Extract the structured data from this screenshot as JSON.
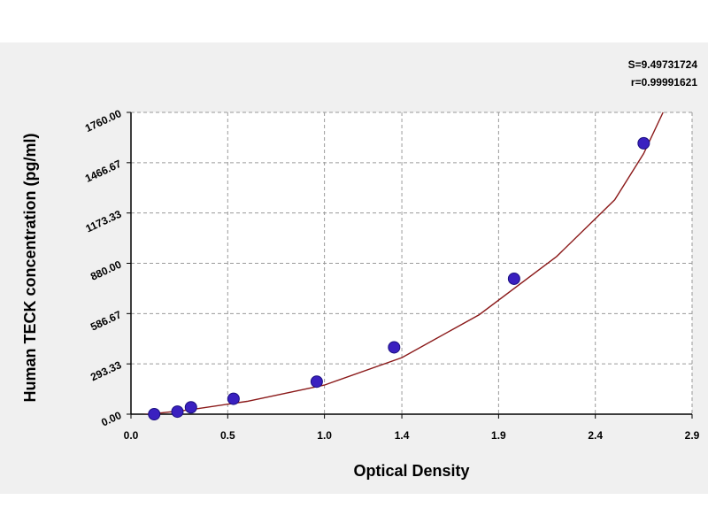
{
  "chart_data": {
    "type": "scatter",
    "title": "",
    "xlabel": "Optical Density",
    "ylabel": "Human TECK concentration (pg/ml)",
    "xlim": [
      0.0,
      2.9
    ],
    "ylim": [
      0.0,
      1760.0
    ],
    "xticks": [
      0.0,
      0.5,
      1.0,
      1.4,
      1.9,
      2.4,
      2.9
    ],
    "xtick_labels": [
      "0.0",
      "0.5",
      "1.0",
      "1.4",
      "1.9",
      "2.4",
      "2.9"
    ],
    "yticks": [
      0,
      293.33,
      586.67,
      880.0,
      1173.33,
      1466.67,
      1760.0
    ],
    "ytick_labels": [
      "0.00",
      "293.33",
      "586.67",
      "880.00",
      "1173.33",
      "1466.67",
      "1760.00"
    ],
    "grid": true,
    "series": [
      {
        "marker_color": "#3a20c0",
        "line_color": "#8b1a1a",
        "x": [
          0.12,
          0.24,
          0.31,
          0.53,
          0.96,
          1.36,
          1.98,
          2.65
        ],
        "y": [
          0,
          15,
          40,
          90,
          190,
          390,
          790,
          1580
        ]
      }
    ],
    "fit_curve": {
      "x": [
        0.05,
        0.3,
        0.6,
        1.0,
        1.4,
        1.8,
        2.2,
        2.5,
        2.65,
        2.75
      ],
      "y": [
        -5,
        25,
        75,
        170,
        330,
        580,
        920,
        1250,
        1520,
        1760
      ]
    },
    "stats": {
      "s": "S=9.49731724",
      "r": "r=0.99991621"
    }
  }
}
